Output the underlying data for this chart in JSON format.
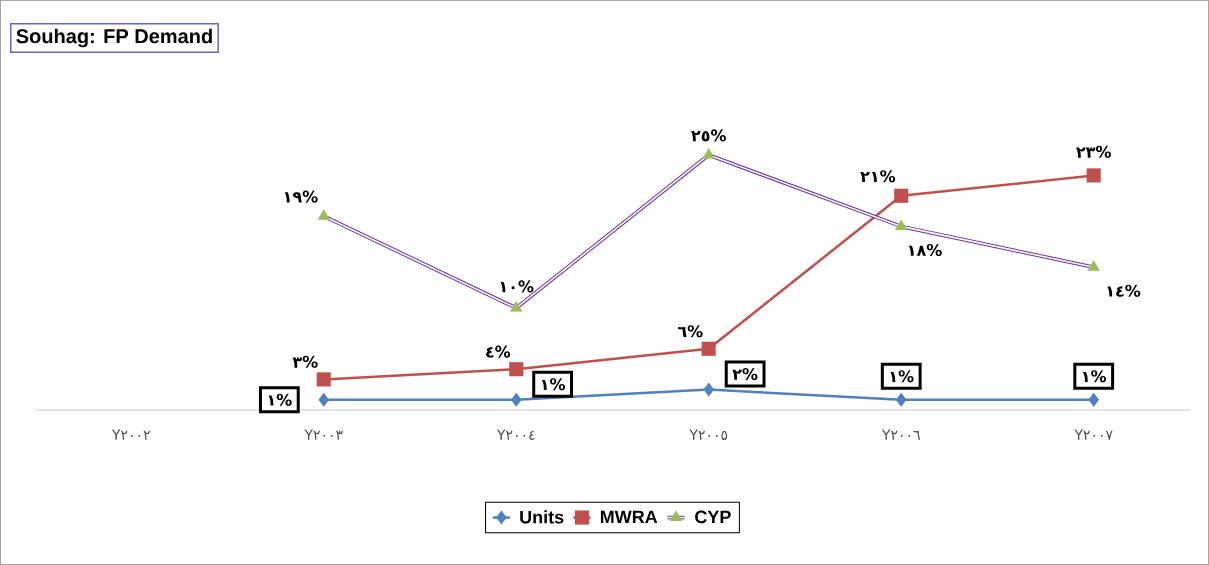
{
  "chart_data": {
    "type": "line",
    "title": "Souhag: FP Demand",
    "categories": [
      "Y٢٠٠٢",
      "Y٢٠٠٣",
      "Y٢٠٠٤",
      "Y٢٠٠٥",
      "Y٢٠٠٦",
      "Y٢٠٠٧"
    ],
    "legend": "bottom",
    "line_style": "solid",
    "series": [
      {
        "name": "Units",
        "color": "#4f81bd",
        "marker": "diamond",
        "values": [
          null,
          1,
          1,
          2,
          1,
          1
        ],
        "value_labels": [
          null,
          "١%",
          "١%",
          "٢%",
          "١%",
          "١%"
        ]
      },
      {
        "name": "MWRA",
        "color": "#c0504d",
        "marker": "square",
        "values": [
          null,
          3,
          4,
          6,
          21,
          23
        ],
        "value_labels": [
          null,
          "٣%",
          "٤%",
          "٦%",
          "٢١%",
          "٢٣%"
        ]
      },
      {
        "name": "CYP",
        "color": "#7030a0",
        "marker": "triangle",
        "colors": [
          null,
          "#9bbb59",
          "#9bbb59",
          "#9bbb59",
          "#9bbb59",
          "#9bbb59"
        ],
        "values": [
          null,
          19,
          10,
          25,
          18,
          14
        ],
        "value_labels": [
          null,
          "١٩%",
          "١٠%",
          "٢٥%",
          "١٨%",
          "١٤%"
        ]
      }
    ]
  }
}
